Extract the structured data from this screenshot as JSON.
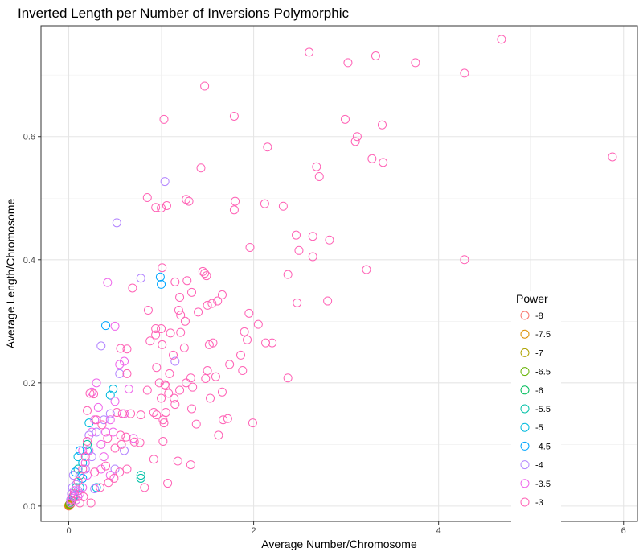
{
  "chart_data": {
    "type": "scatter",
    "title": "Inverted Length per Number of Inversions Polymorphic",
    "xlabel": "Average Number/Chromosome",
    "ylabel": "Average Length/Chromosome",
    "xlim": [
      -0.3,
      6.15
    ],
    "ylim": [
      -0.025,
      0.78
    ],
    "x_ticks": [
      0,
      2,
      4,
      6
    ],
    "y_ticks": [
      0.0,
      0.2,
      0.4,
      0.6
    ],
    "x_tick_labels": [
      "0",
      "2",
      "4",
      "6"
    ],
    "y_tick_labels": [
      "0.0",
      "0.2",
      "0.4",
      "0.6"
    ],
    "grid": true,
    "legend": {
      "title": "Power",
      "placement": "right",
      "entries": [
        {
          "label": "-8",
          "color": "#F8766D"
        },
        {
          "label": "-7.5",
          "color": "#DB8E00"
        },
        {
          "label": "-7",
          "color": "#AEA200"
        },
        {
          "label": "-6.5",
          "color": "#64B200"
        },
        {
          "label": "-6",
          "color": "#00BD5C"
        },
        {
          "label": "-5.5",
          "color": "#00C1A7"
        },
        {
          "label": "-5",
          "color": "#00BADE"
        },
        {
          "label": "-4.5",
          "color": "#00A6FF"
        },
        {
          "label": "-4",
          "color": "#B385FF"
        },
        {
          "label": "-3.5",
          "color": "#EF67EB"
        },
        {
          "label": "-3",
          "color": "#FF63B6"
        }
      ]
    },
    "series": [
      {
        "name": "-8",
        "color": "#F8766D",
        "points": [
          [
            0.0,
            0.0
          ],
          [
            0.01,
            0.002
          ],
          [
            0.02,
            0.003
          ]
        ]
      },
      {
        "name": "-7.5",
        "color": "#DB8E00",
        "points": [
          [
            0.0,
            0.001
          ],
          [
            0.01,
            0.003
          ]
        ]
      },
      {
        "name": "-7",
        "color": "#AEA200",
        "points": [
          [
            0.005,
            0.002
          ],
          [
            0.015,
            0.004
          ]
        ]
      },
      {
        "name": "-6.5",
        "color": "#64B200",
        "points": [
          [
            0.01,
            0.003
          ],
          [
            0.02,
            0.005
          ]
        ]
      },
      {
        "name": "-6",
        "color": "#00BD5C",
        "points": [
          [
            0.02,
            0.006
          ],
          [
            0.03,
            0.008
          ]
        ]
      },
      {
        "name": "-5.5",
        "color": "#00C1A7",
        "points": [
          [
            0.05,
            0.015
          ],
          [
            0.08,
            0.03
          ],
          [
            0.12,
            0.05
          ],
          [
            0.2,
            0.1
          ],
          [
            0.78,
            0.045
          ],
          [
            0.78,
            0.05
          ],
          [
            0.1,
            0.06
          ]
        ]
      },
      {
        "name": "-5",
        "color": "#00BADE",
        "points": [
          [
            0.1,
            0.08
          ],
          [
            0.15,
            0.07
          ],
          [
            0.22,
            0.135
          ],
          [
            0.45,
            0.18
          ],
          [
            0.12,
            0.03
          ],
          [
            0.2,
            0.09
          ],
          [
            0.3,
            0.03
          ],
          [
            0.48,
            0.19
          ]
        ]
      },
      {
        "name": "-4.5",
        "color": "#00A6FF",
        "points": [
          [
            0.4,
            0.293
          ],
          [
            0.99,
            0.372
          ],
          [
            1.0,
            0.36
          ],
          [
            0.12,
            0.09
          ],
          [
            0.07,
            0.055
          ],
          [
            0.15,
            0.045
          ]
        ]
      },
      {
        "name": "-4",
        "color": "#B385FF",
        "points": [
          [
            0.52,
            0.46
          ],
          [
            1.04,
            0.527
          ],
          [
            0.35,
            0.26
          ],
          [
            0.78,
            0.37
          ],
          [
            0.55,
            0.215
          ],
          [
            1.15,
            0.235
          ],
          [
            0.05,
            0.05
          ],
          [
            0.08,
            0.035
          ],
          [
            0.1,
            0.025
          ],
          [
            0.18,
            0.06
          ],
          [
            0.25,
            0.08
          ],
          [
            0.3,
            0.12
          ],
          [
            0.38,
            0.14
          ],
          [
            0.45,
            0.15
          ],
          [
            0.5,
            0.06
          ],
          [
            0.6,
            0.09
          ],
          [
            0.02,
            0.01
          ],
          [
            0.03,
            0.02
          ],
          [
            0.04,
            0.03
          ],
          [
            0.06,
            0.015
          ],
          [
            0.28,
            0.028
          ],
          [
            0.22,
            0.115
          ]
        ]
      },
      {
        "name": "-3.5",
        "color": "#EF67EB",
        "points": [
          [
            0.5,
            0.292
          ],
          [
            0.6,
            0.235
          ],
          [
            0.25,
            0.185
          ],
          [
            0.3,
            0.2
          ],
          [
            0.42,
            0.363
          ],
          [
            0.15,
            0.03
          ],
          [
            0.2,
            0.05
          ],
          [
            0.35,
            0.1
          ],
          [
            0.4,
            0.12
          ],
          [
            0.45,
            0.14
          ],
          [
            0.55,
            0.23
          ],
          [
            0.08,
            0.01
          ],
          [
            0.1,
            0.015
          ],
          [
            0.12,
            0.02
          ],
          [
            0.18,
            0.07
          ],
          [
            0.22,
            0.09
          ],
          [
            0.28,
            0.14
          ],
          [
            0.32,
            0.16
          ],
          [
            0.38,
            0.08
          ],
          [
            0.48,
            0.12
          ],
          [
            0.6,
            0.15
          ],
          [
            0.7,
            0.11
          ],
          [
            0.02,
            0.005
          ],
          [
            0.04,
            0.015
          ],
          [
            0.06,
            0.025
          ],
          [
            0.15,
            0.09
          ],
          [
            0.25,
            0.12
          ],
          [
            0.35,
            0.06
          ],
          [
            0.45,
            0.05
          ],
          [
            0.5,
            0.17
          ],
          [
            0.65,
            0.19
          ]
        ]
      },
      {
        "name": "-3",
        "color": "#FF63B6",
        "points": [
          [
            4.68,
            0.758
          ],
          [
            2.6,
            0.737
          ],
          [
            3.32,
            0.731
          ],
          [
            3.02,
            0.72
          ],
          [
            3.75,
            0.72
          ],
          [
            4.28,
            0.703
          ],
          [
            1.47,
            0.682
          ],
          [
            1.79,
            0.633
          ],
          [
            1.03,
            0.628
          ],
          [
            2.99,
            0.628
          ],
          [
            3.39,
            0.619
          ],
          [
            3.12,
            0.6
          ],
          [
            3.1,
            0.592
          ],
          [
            2.15,
            0.583
          ],
          [
            5.88,
            0.567
          ],
          [
            3.28,
            0.564
          ],
          [
            3.4,
            0.558
          ],
          [
            1.43,
            0.549
          ],
          [
            2.68,
            0.551
          ],
          [
            2.71,
            0.535
          ],
          [
            0.85,
            0.501
          ],
          [
            1.27,
            0.498
          ],
          [
            1.3,
            0.495
          ],
          [
            1.8,
            0.495
          ],
          [
            2.12,
            0.491
          ],
          [
            2.32,
            0.487
          ],
          [
            0.94,
            0.485
          ],
          [
            1.0,
            0.484
          ],
          [
            1.06,
            0.488
          ],
          [
            1.79,
            0.481
          ],
          [
            1.96,
            0.42
          ],
          [
            2.46,
            0.44
          ],
          [
            2.64,
            0.438
          ],
          [
            2.82,
            0.432
          ],
          [
            2.49,
            0.415
          ],
          [
            2.64,
            0.405
          ],
          [
            4.28,
            0.4
          ],
          [
            3.22,
            0.384
          ],
          [
            1.01,
            0.387
          ],
          [
            1.45,
            0.381
          ],
          [
            1.49,
            0.374
          ],
          [
            1.47,
            0.378
          ],
          [
            2.37,
            0.376
          ],
          [
            1.28,
            0.366
          ],
          [
            1.15,
            0.364
          ],
          [
            0.69,
            0.354
          ],
          [
            1.2,
            0.339
          ],
          [
            1.33,
            0.347
          ],
          [
            1.66,
            0.343
          ],
          [
            1.61,
            0.333
          ],
          [
            1.55,
            0.329
          ],
          [
            1.5,
            0.326
          ],
          [
            1.95,
            0.313
          ],
          [
            0.86,
            0.318
          ],
          [
            1.19,
            0.318
          ],
          [
            1.21,
            0.31
          ],
          [
            2.8,
            0.333
          ],
          [
            2.47,
            0.33
          ],
          [
            1.4,
            0.315
          ],
          [
            1.26,
            0.3
          ],
          [
            2.05,
            0.295
          ],
          [
            0.94,
            0.288
          ],
          [
            1.0,
            0.288
          ],
          [
            1.21,
            0.282
          ],
          [
            1.1,
            0.281
          ],
          [
            0.94,
            0.278
          ],
          [
            1.9,
            0.283
          ],
          [
            0.88,
            0.268
          ],
          [
            1.52,
            0.262
          ],
          [
            1.56,
            0.265
          ],
          [
            2.13,
            0.265
          ],
          [
            2.2,
            0.265
          ],
          [
            1.01,
            0.262
          ],
          [
            1.25,
            0.257
          ],
          [
            0.56,
            0.256
          ],
          [
            0.63,
            0.255
          ],
          [
            1.93,
            0.27
          ],
          [
            1.86,
            0.245
          ],
          [
            1.13,
            0.245
          ],
          [
            1.74,
            0.23
          ],
          [
            1.88,
            0.22
          ],
          [
            1.5,
            0.22
          ],
          [
            1.59,
            0.21
          ],
          [
            2.37,
            0.208
          ],
          [
            1.32,
            0.208
          ],
          [
            0.95,
            0.225
          ],
          [
            0.63,
            0.215
          ],
          [
            1.09,
            0.215
          ],
          [
            0.98,
            0.2
          ],
          [
            1.04,
            0.197
          ],
          [
            1.05,
            0.195
          ],
          [
            1.27,
            0.2
          ],
          [
            1.34,
            0.193
          ],
          [
            1.48,
            0.207
          ],
          [
            1.08,
            0.183
          ],
          [
            1.2,
            0.188
          ],
          [
            1.14,
            0.175
          ],
          [
            1.0,
            0.175
          ],
          [
            1.53,
            0.175
          ],
          [
            1.66,
            0.185
          ],
          [
            1.15,
            0.165
          ],
          [
            0.85,
            0.188
          ],
          [
            0.92,
            0.152
          ],
          [
            0.95,
            0.148
          ],
          [
            1.05,
            0.152
          ],
          [
            1.33,
            0.158
          ],
          [
            1.67,
            0.14
          ],
          [
            1.72,
            0.142
          ],
          [
            1.99,
            0.135
          ],
          [
            1.38,
            0.133
          ],
          [
            1.02,
            0.14
          ],
          [
            1.03,
            0.135
          ],
          [
            0.78,
            0.148
          ],
          [
            0.67,
            0.15
          ],
          [
            0.58,
            0.15
          ],
          [
            0.52,
            0.152
          ],
          [
            0.56,
            0.115
          ],
          [
            0.62,
            0.112
          ],
          [
            0.71,
            0.104
          ],
          [
            0.77,
            0.103
          ],
          [
            1.02,
            0.105
          ],
          [
            1.62,
            0.115
          ],
          [
            0.57,
            0.1
          ],
          [
            0.92,
            0.076
          ],
          [
            1.18,
            0.073
          ],
          [
            1.32,
            0.067
          ],
          [
            1.07,
            0.037
          ],
          [
            0.82,
            0.03
          ],
          [
            0.49,
            0.045
          ],
          [
            0.43,
            0.038
          ],
          [
            0.55,
            0.055
          ],
          [
            0.63,
            0.06
          ],
          [
            0.5,
            0.094
          ],
          [
            0.42,
            0.11
          ],
          [
            0.36,
            0.132
          ],
          [
            0.3,
            0.14
          ],
          [
            0.27,
            0.182
          ],
          [
            0.23,
            0.183
          ],
          [
            0.2,
            0.105
          ],
          [
            0.18,
            0.08
          ],
          [
            0.15,
            0.06
          ],
          [
            0.1,
            0.04
          ],
          [
            0.06,
            0.02
          ],
          [
            0.03,
            0.01
          ],
          [
            0.2,
            0.155
          ],
          [
            0.28,
            0.055
          ],
          [
            0.34,
            0.03
          ],
          [
            0.4,
            0.065
          ],
          [
            0.16,
            0.015
          ],
          [
            0.24,
            0.005
          ],
          [
            0.12,
            0.005
          ]
        ]
      }
    ]
  }
}
